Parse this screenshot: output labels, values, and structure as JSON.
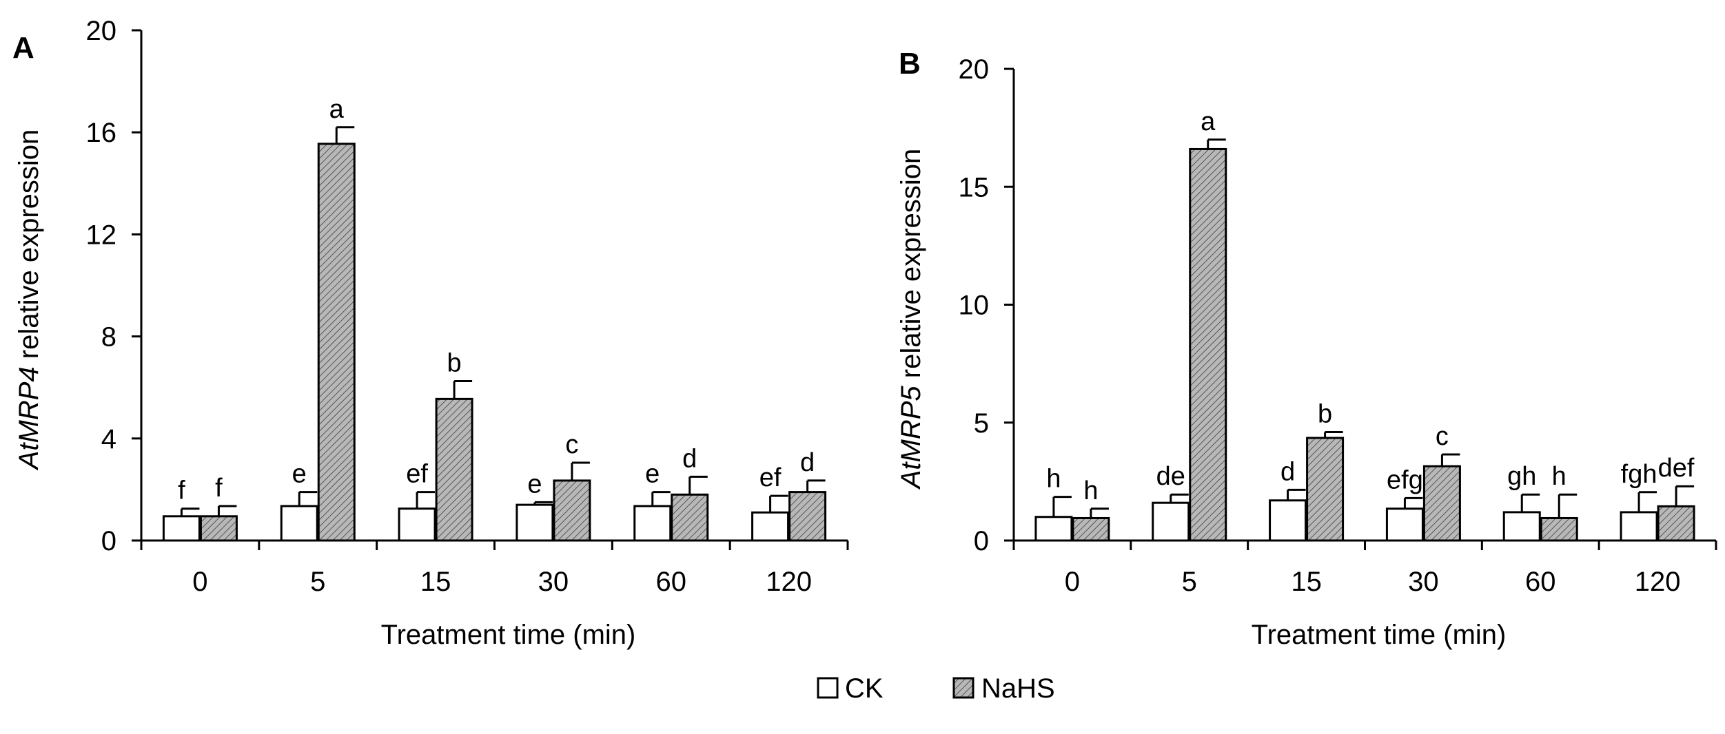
{
  "chart_data": [
    {
      "type": "bar",
      "panel": "A",
      "categories": [
        "0",
        "5",
        "15",
        "30",
        "60",
        "120"
      ],
      "xlabel": "Treatment time (min)",
      "ylabel_gene": "AtMRP4",
      "ylabel_rest": " relative expression",
      "ylim": [
        0,
        20
      ],
      "yticks": [
        0,
        4,
        8,
        12,
        16,
        20
      ],
      "series": [
        {
          "name": "CK",
          "values": [
            0.95,
            1.35,
            1.25,
            1.4,
            1.35,
            1.1
          ],
          "errors": [
            0.3,
            0.55,
            0.65,
            0.1,
            0.55,
            0.65
          ],
          "labels": [
            "f",
            "e",
            "ef",
            "e",
            "e",
            "ef"
          ]
        },
        {
          "name": "NaHS",
          "values": [
            0.95,
            15.55,
            5.55,
            2.35,
            1.8,
            1.9
          ],
          "errors": [
            0.4,
            0.65,
            0.7,
            0.7,
            0.7,
            0.45
          ],
          "labels": [
            "f",
            "a",
            "b",
            "c",
            "d",
            "d"
          ]
        }
      ]
    },
    {
      "type": "bar",
      "panel": "B",
      "categories": [
        "0",
        "5",
        "15",
        "30",
        "60",
        "120"
      ],
      "xlabel": "Treatment time (min)",
      "ylabel_gene": "AtMRP5",
      "ylabel_rest": " relative expression",
      "ylim": [
        0,
        20
      ],
      "yticks": [
        0,
        5,
        10,
        15,
        20
      ],
      "series": [
        {
          "name": "CK",
          "values": [
            1.0,
            1.6,
            1.7,
            1.35,
            1.2,
            1.2
          ],
          "errors": [
            0.85,
            0.35,
            0.45,
            0.45,
            0.75,
            0.85
          ],
          "labels": [
            "h",
            "de",
            "d",
            "efg",
            "gh",
            "fgh"
          ]
        },
        {
          "name": "NaHS",
          "values": [
            0.95,
            16.6,
            4.35,
            3.15,
            0.95,
            1.45
          ],
          "errors": [
            0.4,
            0.4,
            0.25,
            0.5,
            1.0,
            0.85
          ],
          "labels": [
            "h",
            "a",
            "b",
            "c",
            "h",
            "def"
          ]
        }
      ]
    }
  ],
  "legend": {
    "items": [
      "CK",
      "NaHS"
    ]
  },
  "colors": {
    "ck_fill": "#ffffff",
    "nahs_fill": "#b8b8b8",
    "nahs_hatch": "#555555",
    "stroke": "#000000"
  }
}
